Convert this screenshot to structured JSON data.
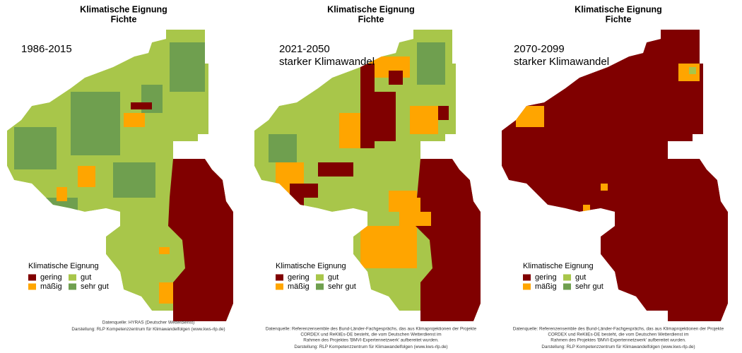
{
  "panels": [
    {
      "title": "Klimatische Eignung",
      "subtitle": "Fichte",
      "period": [
        "1986-2015"
      ],
      "legend": {
        "title": "Klimatische Eignung",
        "items": [
          {
            "label": "gering",
            "color": "#800000"
          },
          {
            "label": "mäßig",
            "color": "#ffa500"
          },
          {
            "label": "gut",
            "color": "#a8c64a"
          },
          {
            "label": "sehr gut",
            "color": "#6f9f4f"
          }
        ]
      },
      "source": [
        "Datenquelle: HYRAS (Deutscher Wetterdienst)",
        "Darstellung: RLP Kompetenzzentrum für Klimawandelfolgen (www.kws-rlp.de)"
      ]
    },
    {
      "title": "Klimatische Eignung",
      "subtitle": "Fichte",
      "period": [
        "2021-2050",
        "starker Klimawandel"
      ],
      "legend": {
        "title": "Klimatische Eignung",
        "items": [
          {
            "label": "gering",
            "color": "#800000"
          },
          {
            "label": "mäßig",
            "color": "#ffa500"
          },
          {
            "label": "gut",
            "color": "#a8c64a"
          },
          {
            "label": "sehr gut",
            "color": "#6f9f4f"
          }
        ]
      },
      "source": [
        "Datenquelle: Referenzensemble des Bund-Länder-Fachgesprächs, das aus Klimaprojektionen der Projekte",
        "CORDEX und ReKliEs-DE besteht, die vom Deutschen Wetterdienst im",
        "Rahmen des Projektes 'BMVI-Expertennetzwerk' aufbereitet wurden.",
        "Darstellung: RLP Kompetenzzentrum für Klimawandelfolgen (www.kws-rlp.de)"
      ]
    },
    {
      "title": "Klimatische Eignung",
      "subtitle": "Fichte",
      "period": [
        "2070-2099",
        "starker Klimawandel"
      ],
      "legend": {
        "title": "Klimatische Eignung",
        "items": [
          {
            "label": "gering",
            "color": "#800000"
          },
          {
            "label": "mäßig",
            "color": "#ffa500"
          },
          {
            "label": "gut",
            "color": "#a8c64a"
          },
          {
            "label": "sehr gut",
            "color": "#6f9f4f"
          }
        ]
      },
      "source": [
        "Datenquelle: Referenzensemble des Bund-Länder-Fachgesprächs, das aus Klimaprojektionen der Projekte",
        "CORDEX und ReKliEs-DE besteht, die vom Deutschen Wetterdienst im",
        "Rahmen des Projektes 'BMVI-Expertennetzwerk' aufbereitet wurden.",
        "Darstellung: RLP Kompetenzzentrum für Klimawandelfolgen (www.kws-rlp.de)"
      ]
    }
  ]
}
